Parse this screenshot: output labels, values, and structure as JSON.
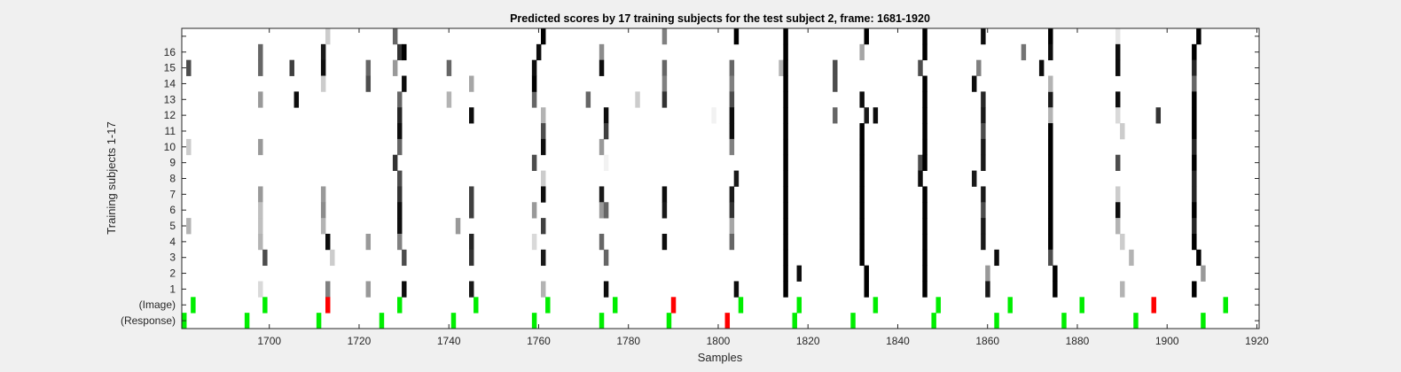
{
  "chart_data": {
    "type": "heatmap",
    "title": "Predicted scores by 17 training subjects for the test subject 2, frame: 1681-1920",
    "xlabel": "Samples",
    "ylabel": "Training subjects 1-17",
    "xlim": [
      1681,
      1920
    ],
    "x_ticks": [
      1700,
      1720,
      1740,
      1760,
      1780,
      1800,
      1820,
      1840,
      1860,
      1880,
      1900,
      1920
    ],
    "row_labels": [
      "(Response)",
      "(Image)",
      "1",
      "2",
      "3",
      "4",
      "5",
      "6",
      "7",
      "8",
      "9",
      "10",
      "11",
      "12",
      "13",
      "14",
      "15",
      "16",
      ""
    ],
    "colorscale": "gray-inverted",
    "colors": {
      "correct": "#00ee00",
      "wrong": "#ff0000",
      "background": "#ffffff",
      "figure": "#f0f0f0"
    },
    "response_marks": [
      {
        "x": 1681,
        "status": "correct"
      },
      {
        "x": 1695,
        "status": "correct"
      },
      {
        "x": 1711,
        "status": "correct"
      },
      {
        "x": 1725,
        "status": "correct"
      },
      {
        "x": 1741,
        "status": "correct"
      },
      {
        "x": 1759,
        "status": "correct"
      },
      {
        "x": 1774,
        "status": "correct"
      },
      {
        "x": 1789,
        "status": "correct"
      },
      {
        "x": 1802,
        "status": "wrong"
      },
      {
        "x": 1817,
        "status": "correct"
      },
      {
        "x": 1830,
        "status": "correct"
      },
      {
        "x": 1848,
        "status": "correct"
      },
      {
        "x": 1862,
        "status": "correct"
      },
      {
        "x": 1877,
        "status": "correct"
      },
      {
        "x": 1893,
        "status": "correct"
      },
      {
        "x": 1908,
        "status": "correct"
      }
    ],
    "image_marks": [
      {
        "x": 1683,
        "status": "correct"
      },
      {
        "x": 1699,
        "status": "correct"
      },
      {
        "x": 1713,
        "status": "wrong"
      },
      {
        "x": 1729,
        "status": "correct"
      },
      {
        "x": 1746,
        "status": "correct"
      },
      {
        "x": 1762,
        "status": "correct"
      },
      {
        "x": 1777,
        "status": "correct"
      },
      {
        "x": 1790,
        "status": "wrong"
      },
      {
        "x": 1805,
        "status": "correct"
      },
      {
        "x": 1818,
        "status": "correct"
      },
      {
        "x": 1835,
        "status": "correct"
      },
      {
        "x": 1849,
        "status": "correct"
      },
      {
        "x": 1865,
        "status": "correct"
      },
      {
        "x": 1881,
        "status": "correct"
      },
      {
        "x": 1897,
        "status": "wrong"
      },
      {
        "x": 1913,
        "status": "correct"
      }
    ],
    "score_columns": [
      {
        "x": 1682,
        "cells": [
          [
            10,
            0.2
          ],
          [
            5,
            0.3
          ],
          [
            15,
            0.7
          ]
        ]
      },
      {
        "x": 1698,
        "cells": [
          [
            16,
            0.6
          ],
          [
            15,
            0.6
          ],
          [
            13,
            0.4
          ],
          [
            10,
            0.4
          ],
          [
            7,
            0.4
          ],
          [
            6,
            0.25
          ],
          [
            5,
            0.25
          ],
          [
            4,
            0.3
          ],
          [
            1,
            0.15
          ]
        ]
      },
      {
        "x": 1699,
        "cells": [
          [
            3,
            0.7
          ]
        ]
      },
      {
        "x": 1705,
        "cells": [
          [
            15,
            0.75
          ]
        ]
      },
      {
        "x": 1706,
        "cells": [
          [
            13,
            0.95
          ]
        ]
      },
      {
        "x": 1712,
        "cells": [
          [
            16,
            0.9
          ],
          [
            15,
            0.95
          ],
          [
            14,
            0.2
          ],
          [
            7,
            0.4
          ],
          [
            6,
            0.45
          ],
          [
            5,
            0.3
          ]
        ]
      },
      {
        "x": 1713,
        "cells": [
          [
            4,
            0.95
          ],
          [
            1,
            0.5
          ],
          [
            17,
            0.2
          ]
        ]
      },
      {
        "x": 1714,
        "cells": [
          [
            3,
            0.2
          ]
        ]
      },
      {
        "x": 1722,
        "cells": [
          [
            15,
            0.6
          ],
          [
            14,
            0.7
          ],
          [
            4,
            0.4
          ],
          [
            1,
            0.4
          ]
        ]
      },
      {
        "x": 1728,
        "cells": [
          [
            17,
            0.6
          ],
          [
            15,
            0.4
          ],
          [
            9,
            0.8
          ]
        ]
      },
      {
        "x": 1729,
        "cells": [
          [
            16,
            0.8
          ],
          [
            13,
            0.6
          ],
          [
            12,
            0.85
          ],
          [
            11,
            0.95
          ],
          [
            10,
            0.6
          ],
          [
            8,
            0.7
          ],
          [
            7,
            0.8
          ],
          [
            6,
            0.95
          ],
          [
            5,
            0.95
          ],
          [
            4,
            0.5
          ]
        ]
      },
      {
        "x": 1730,
        "cells": [
          [
            16,
            1.0
          ],
          [
            14,
            0.95
          ],
          [
            3,
            0.7
          ],
          [
            1,
            0.95
          ]
        ]
      },
      {
        "x": 1740,
        "cells": [
          [
            15,
            0.6
          ],
          [
            13,
            0.3
          ]
        ]
      },
      {
        "x": 1742,
        "cells": [
          [
            5,
            0.4
          ]
        ]
      },
      {
        "x": 1745,
        "cells": [
          [
            14,
            0.35
          ],
          [
            12,
            0.95
          ],
          [
            7,
            0.75
          ],
          [
            6,
            0.75
          ],
          [
            4,
            0.85
          ],
          [
            3,
            0.8
          ],
          [
            1,
            0.9
          ]
        ]
      },
      {
        "x": 1759,
        "cells": [
          [
            15,
            0.95
          ],
          [
            13,
            0.6
          ],
          [
            9,
            0.7
          ],
          [
            6,
            0.4
          ],
          [
            4,
            0.15
          ],
          [
            14,
            1.0
          ]
        ]
      },
      {
        "x": 1760,
        "cells": [
          [
            16,
            0.95
          ]
        ]
      },
      {
        "x": 1761,
        "cells": [
          [
            17,
            1.0
          ],
          [
            12,
            0.3
          ],
          [
            11,
            0.7
          ],
          [
            10,
            0.95
          ],
          [
            8,
            0.2
          ],
          [
            7,
            0.95
          ],
          [
            5,
            0.75
          ],
          [
            3,
            0.9
          ],
          [
            1,
            0.3
          ]
        ]
      },
      {
        "x": 1771,
        "cells": [
          [
            13,
            0.6
          ]
        ]
      },
      {
        "x": 1774,
        "cells": [
          [
            16,
            0.45
          ],
          [
            15,
            0.95
          ],
          [
            10,
            0.4
          ],
          [
            7,
            0.9
          ],
          [
            6,
            0.4
          ],
          [
            4,
            0.6
          ]
        ]
      },
      {
        "x": 1775,
        "cells": [
          [
            12,
            0.95
          ],
          [
            11,
            0.75
          ],
          [
            9,
            0.05
          ],
          [
            6,
            0.6
          ],
          [
            3,
            0.6
          ],
          [
            1,
            0.95
          ]
        ]
      },
      {
        "x": 1782,
        "cells": [
          [
            13,
            0.2
          ]
        ]
      },
      {
        "x": 1788,
        "cells": [
          [
            17,
            0.5
          ],
          [
            15,
            0.6
          ],
          [
            14,
            0.5
          ],
          [
            13,
            0.8
          ],
          [
            7,
            0.95
          ],
          [
            6,
            0.9
          ],
          [
            4,
            0.95
          ]
        ]
      },
      {
        "x": 1799,
        "cells": [
          [
            12,
            0.05
          ]
        ]
      },
      {
        "x": 1803,
        "cells": [
          [
            15,
            0.6
          ],
          [
            14,
            0.5
          ],
          [
            13,
            0.7
          ],
          [
            12,
            0.95
          ],
          [
            11,
            0.95
          ],
          [
            10,
            0.5
          ],
          [
            7,
            0.9
          ],
          [
            6,
            0.8
          ],
          [
            5,
            0.35
          ],
          [
            4,
            0.6
          ]
        ]
      },
      {
        "x": 1804,
        "cells": [
          [
            17,
            1.0
          ],
          [
            8,
            0.9
          ],
          [
            1,
            0.95
          ]
        ]
      },
      {
        "x": 1814,
        "cells": [
          [
            15,
            0.3
          ]
        ]
      },
      {
        "x": 1815,
        "cells": [
          [
            17,
            1.0
          ],
          [
            16,
            1.0
          ],
          [
            15,
            1.0
          ],
          [
            14,
            1.0
          ],
          [
            13,
            1.0
          ],
          [
            12,
            1.0
          ],
          [
            11,
            1.0
          ],
          [
            10,
            1.0
          ],
          [
            9,
            1.0
          ],
          [
            8,
            1.0
          ],
          [
            7,
            1.0
          ],
          [
            6,
            1.0
          ],
          [
            5,
            1.0
          ],
          [
            4,
            1.0
          ],
          [
            3,
            1.0
          ],
          [
            2,
            1.0
          ],
          [
            1,
            1.0
          ]
        ]
      },
      {
        "x": 1818,
        "cells": [
          [
            2,
            0.95
          ]
        ]
      },
      {
        "x": 1826,
        "cells": [
          [
            15,
            0.7
          ],
          [
            14,
            0.7
          ],
          [
            12,
            0.6
          ]
        ]
      },
      {
        "x": 1832,
        "cells": [
          [
            16,
            0.35
          ],
          [
            13,
            0.95
          ],
          [
            11,
            1.0
          ],
          [
            10,
            1.0
          ],
          [
            9,
            1.0
          ],
          [
            8,
            1.0
          ],
          [
            7,
            1.0
          ],
          [
            6,
            1.0
          ],
          [
            5,
            1.0
          ],
          [
            4,
            1.0
          ],
          [
            3,
            1.0
          ]
        ]
      },
      {
        "x": 1833,
        "cells": [
          [
            17,
            1.0
          ],
          [
            12,
            0.9
          ],
          [
            2,
            1.0
          ],
          [
            1,
            1.0
          ]
        ]
      },
      {
        "x": 1835,
        "cells": [
          [
            12,
            0.95
          ]
        ]
      },
      {
        "x": 1845,
        "cells": [
          [
            15,
            0.7
          ],
          [
            9,
            0.7
          ],
          [
            8,
            0.95
          ]
        ]
      },
      {
        "x": 1846,
        "cells": [
          [
            17,
            1.0
          ],
          [
            16,
            1.0
          ],
          [
            14,
            1.0
          ],
          [
            13,
            1.0
          ],
          [
            12,
            1.0
          ],
          [
            11,
            1.0
          ],
          [
            10,
            1.0
          ],
          [
            9,
            1.0
          ],
          [
            7,
            1.0
          ],
          [
            6,
            1.0
          ],
          [
            5,
            1.0
          ],
          [
            4,
            1.0
          ],
          [
            3,
            1.0
          ],
          [
            2,
            1.0
          ],
          [
            1,
            1.0
          ]
        ]
      },
      {
        "x": 1857,
        "cells": [
          [
            14,
            0.95
          ],
          [
            8,
            0.9
          ]
        ]
      },
      {
        "x": 1858,
        "cells": [
          [
            15,
            0.5
          ]
        ]
      },
      {
        "x": 1859,
        "cells": [
          [
            17,
            0.95
          ],
          [
            13,
            0.85
          ],
          [
            12,
            0.9
          ],
          [
            11,
            0.7
          ],
          [
            10,
            0.9
          ],
          [
            9,
            0.9
          ],
          [
            7,
            0.9
          ],
          [
            6,
            0.7
          ],
          [
            5,
            0.9
          ],
          [
            4,
            0.9
          ]
        ]
      },
      {
        "x": 1860,
        "cells": [
          [
            2,
            0.4
          ],
          [
            1,
            0.9
          ]
        ]
      },
      {
        "x": 1862,
        "cells": [
          [
            3,
            0.95
          ]
        ]
      },
      {
        "x": 1868,
        "cells": [
          [
            16,
            0.55
          ]
        ]
      },
      {
        "x": 1872,
        "cells": [
          [
            15,
            0.95
          ]
        ]
      },
      {
        "x": 1874,
        "cells": [
          [
            17,
            1.0
          ],
          [
            16,
            0.95
          ],
          [
            13,
            0.9
          ],
          [
            12,
            0.3
          ],
          [
            11,
            1.0
          ],
          [
            10,
            1.0
          ],
          [
            9,
            1.0
          ],
          [
            8,
            1.0
          ],
          [
            7,
            1.0
          ],
          [
            6,
            1.0
          ],
          [
            5,
            1.0
          ],
          [
            4,
            1.0
          ],
          [
            3,
            0.7
          ],
          [
            14,
            0.3
          ]
        ]
      },
      {
        "x": 1875,
        "cells": [
          [
            2,
            1.0
          ],
          [
            1,
            1.0
          ]
        ]
      },
      {
        "x": 1889,
        "cells": [
          [
            17,
            0.1
          ],
          [
            16,
            0.95
          ],
          [
            15,
            0.95
          ],
          [
            13,
            0.95
          ],
          [
            12,
            0.15
          ],
          [
            9,
            0.7
          ],
          [
            7,
            0.2
          ],
          [
            6,
            0.95
          ],
          [
            5,
            0.3
          ]
        ]
      },
      {
        "x": 1890,
        "cells": [
          [
            11,
            0.2
          ],
          [
            4,
            0.2
          ],
          [
            1,
            0.3
          ]
        ]
      },
      {
        "x": 1892,
        "cells": [
          [
            3,
            0.3
          ]
        ]
      },
      {
        "x": 1898,
        "cells": [
          [
            12,
            0.8
          ]
        ]
      },
      {
        "x": 1906,
        "cells": [
          [
            16,
            1.0
          ],
          [
            15,
            0.85
          ],
          [
            14,
            0.6
          ],
          [
            13,
            1.0
          ],
          [
            12,
            1.0
          ],
          [
            11,
            1.0
          ],
          [
            10,
            0.85
          ],
          [
            9,
            1.0
          ],
          [
            8,
            0.85
          ],
          [
            7,
            0.85
          ],
          [
            6,
            1.0
          ],
          [
            5,
            0.85
          ],
          [
            4,
            1.0
          ],
          [
            1,
            1.0
          ]
        ]
      },
      {
        "x": 1907,
        "cells": [
          [
            17,
            1.0
          ],
          [
            3,
            1.0
          ]
        ]
      },
      {
        "x": 1908,
        "cells": [
          [
            2,
            0.4
          ]
        ]
      }
    ]
  }
}
